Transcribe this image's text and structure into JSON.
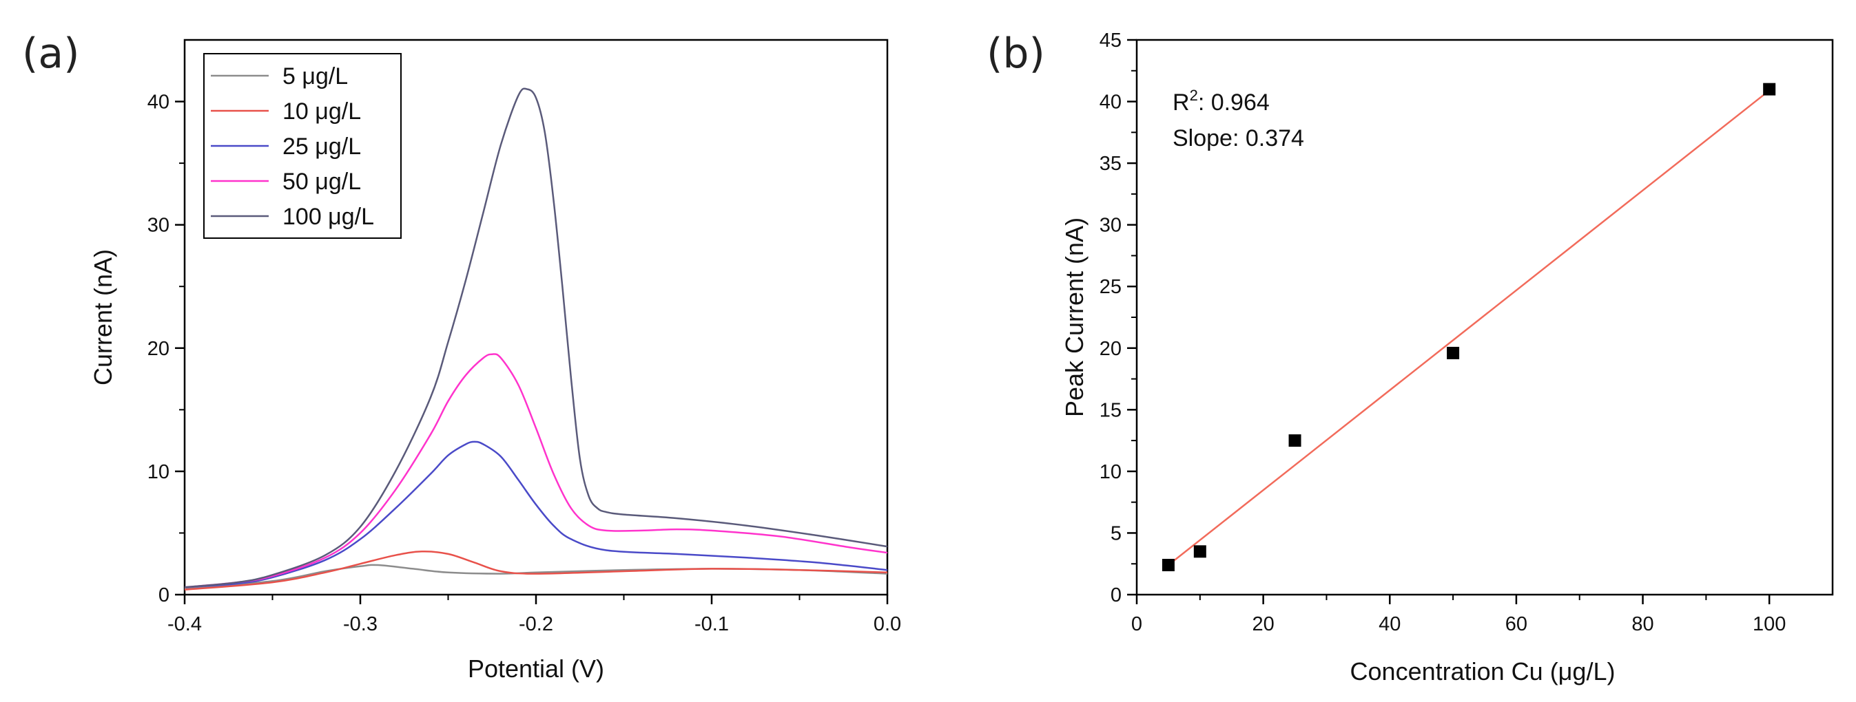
{
  "chart_data": [
    {
      "panel_label": "(a)",
      "type": "line",
      "xlabel": "Potential (V)",
      "ylabel": "Current (nA)",
      "xlim": [
        -0.4,
        0.0
      ],
      "ylim": [
        0,
        45
      ],
      "x_ticks": [
        -0.4,
        -0.3,
        -0.2,
        -0.1,
        0.0
      ],
      "x_tick_labels": [
        "-0.4",
        "-0.3",
        "-0.2",
        "-0.1",
        "0.0"
      ],
      "y_ticks": [
        0,
        10,
        20,
        30,
        40
      ],
      "y_tick_labels": [
        "0",
        "10",
        "20",
        "30",
        "40"
      ],
      "grid": false,
      "legend_position": "top-left",
      "series": [
        {
          "name": "5 μg/L",
          "color": "#8c8c8c",
          "x": [
            -0.4,
            -0.35,
            -0.32,
            -0.3,
            -0.29,
            -0.27,
            -0.25,
            -0.22,
            -0.2,
            -0.15,
            -0.1,
            -0.05,
            0.0
          ],
          "y": [
            0.5,
            1.1,
            1.9,
            2.3,
            2.4,
            2.1,
            1.8,
            1.7,
            1.8,
            2.0,
            2.1,
            2.0,
            1.7
          ]
        },
        {
          "name": "10 μg/L",
          "color": "#e8514a",
          "x": [
            -0.4,
            -0.35,
            -0.32,
            -0.3,
            -0.28,
            -0.265,
            -0.25,
            -0.235,
            -0.22,
            -0.2,
            -0.15,
            -0.1,
            -0.05,
            0.0
          ],
          "y": [
            0.4,
            1.0,
            1.8,
            2.5,
            3.2,
            3.5,
            3.3,
            2.6,
            1.9,
            1.7,
            1.9,
            2.1,
            2.0,
            1.8
          ]
        },
        {
          "name": "25 μg/L",
          "color": "#4a4ac8",
          "x": [
            -0.4,
            -0.37,
            -0.35,
            -0.32,
            -0.3,
            -0.28,
            -0.26,
            -0.25,
            -0.24,
            -0.235,
            -0.23,
            -0.22,
            -0.21,
            -0.2,
            -0.19,
            -0.18,
            -0.16,
            -0.12,
            -0.08,
            -0.04,
            0.0
          ],
          "y": [
            0.6,
            0.9,
            1.4,
            2.8,
            4.5,
            7.0,
            9.8,
            11.3,
            12.2,
            12.4,
            12.2,
            11.2,
            9.3,
            7.3,
            5.6,
            4.5,
            3.6,
            3.3,
            3.0,
            2.6,
            2.0
          ]
        },
        {
          "name": "50 μg/L",
          "color": "#ff33cc",
          "x": [
            -0.4,
            -0.37,
            -0.35,
            -0.32,
            -0.3,
            -0.28,
            -0.26,
            -0.25,
            -0.24,
            -0.23,
            -0.225,
            -0.22,
            -0.21,
            -0.2,
            -0.19,
            -0.18,
            -0.17,
            -0.16,
            -0.14,
            -0.12,
            -0.1,
            -0.06,
            -0.02,
            0.0
          ],
          "y": [
            0.6,
            1.0,
            1.5,
            3.0,
            5.0,
            8.5,
            13.0,
            15.7,
            17.8,
            19.2,
            19.5,
            19.2,
            17.0,
            13.5,
            9.8,
            7.0,
            5.6,
            5.2,
            5.2,
            5.3,
            5.2,
            4.7,
            3.8,
            3.4
          ]
        },
        {
          "name": "100 μg/L",
          "color": "#5a5a7a",
          "x": [
            -0.4,
            -0.37,
            -0.35,
            -0.32,
            -0.3,
            -0.28,
            -0.26,
            -0.25,
            -0.24,
            -0.23,
            -0.22,
            -0.21,
            -0.205,
            -0.2,
            -0.195,
            -0.19,
            -0.185,
            -0.18,
            -0.175,
            -0.17,
            -0.165,
            -0.16,
            -0.15,
            -0.12,
            -0.08,
            -0.04,
            0.0
          ],
          "y": [
            0.6,
            1.0,
            1.6,
            3.2,
            5.5,
            10.0,
            16.0,
            20.5,
            25.5,
            31.0,
            36.5,
            40.5,
            41.0,
            40.3,
            37.5,
            32.0,
            25.0,
            17.5,
            11.0,
            8.0,
            7.0,
            6.7,
            6.5,
            6.2,
            5.6,
            4.8,
            3.9
          ]
        }
      ]
    },
    {
      "panel_label": "(b)",
      "type": "scatter",
      "xlabel": "Concentration Cu (μg/L)",
      "ylabel": "Peak Current (nA)",
      "xlim": [
        0,
        110
      ],
      "ylim": [
        0,
        45
      ],
      "x_ticks": [
        0,
        20,
        40,
        60,
        80,
        100
      ],
      "x_tick_labels": [
        "0",
        "20",
        "40",
        "60",
        "80",
        "100"
      ],
      "y_ticks": [
        0,
        5,
        10,
        15,
        20,
        25,
        30,
        35,
        40,
        45
      ],
      "y_tick_labels": [
        "0",
        "5",
        "10",
        "15",
        "20",
        "25",
        "30",
        "35",
        "40",
        "45"
      ],
      "grid": false,
      "series": [
        {
          "name": "Peak current",
          "color": "#000000",
          "x": [
            5,
            10,
            25,
            50,
            100
          ],
          "y": [
            2.4,
            3.5,
            12.5,
            19.6,
            41.0
          ]
        }
      ],
      "fit_line": {
        "color": "#f26b5b",
        "x": [
          5,
          100
        ],
        "y": [
          2.4,
          40.9
        ]
      },
      "annotations": {
        "r2_prefix": "R",
        "r2_sup": "2",
        "r2_value": ": 0.964",
        "slope": "Slope: 0.374"
      }
    }
  ]
}
